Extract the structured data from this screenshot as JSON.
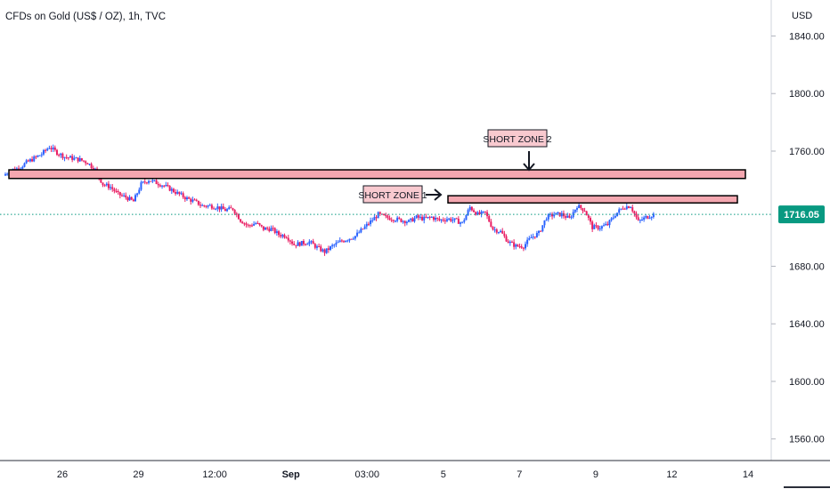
{
  "header": {
    "title": "CFDs on Gold (US$ / OZ), 1h, TVC"
  },
  "price_axis": {
    "currency": "USD"
  },
  "last_price": {
    "label": "1716.05",
    "value": 1716.05
  },
  "colors": {
    "up": "#2962ff",
    "down": "#e91e63",
    "zone_fill": "#f4a7b0",
    "zone_border": "#000000",
    "price_tag": "#089981",
    "grid": "#f0f3fa"
  },
  "annotations": [
    {
      "id": "short-zone-1",
      "label": "SHORT ZONE 1",
      "arrow": "right-arrow-icon"
    },
    {
      "id": "short-zone-2",
      "label": "SHORT ZONE 2",
      "arrow": "down-arrow-icon"
    }
  ],
  "chart_data": {
    "type": "candlestick",
    "title": "CFDs on Gold (US$ / OZ), 1h, TVC",
    "ylim": [
      1545,
      1865
    ],
    "y_ticks": [
      "1840.00",
      "1800.00",
      "1760.00",
      "1680.00",
      "1640.00",
      "1600.00",
      "1560.00"
    ],
    "x_ticks": [
      {
        "label": "26",
        "bold": false
      },
      {
        "label": "29",
        "bold": false
      },
      {
        "label": "12:00",
        "bold": false
      },
      {
        "label": "Sep",
        "bold": true
      },
      {
        "label": "03:00",
        "bold": false
      },
      {
        "label": "5",
        "bold": false
      },
      {
        "label": "7",
        "bold": false
      },
      {
        "label": "9",
        "bold": false
      },
      {
        "label": "12",
        "bold": false
      },
      {
        "label": "14",
        "bold": false
      }
    ],
    "zones": [
      {
        "name": "SHORT ZONE 2",
        "low": 1741,
        "high": 1747
      },
      {
        "name": "SHORT ZONE 1",
        "low": 1724,
        "high": 1729
      }
    ],
    "last_price": 1716.05,
    "path": [
      1743,
      1747,
      1748,
      1752,
      1755,
      1758,
      1763,
      1759,
      1756,
      1755,
      1754,
      1752,
      1747,
      1737,
      1735,
      1730,
      1728,
      1725,
      1737,
      1740,
      1738,
      1736,
      1733,
      1730,
      1727,
      1725,
      1722,
      1722,
      1721,
      1719,
      1720,
      1712,
      1708,
      1710,
      1706,
      1706,
      1702,
      1701,
      1695,
      1696,
      1697,
      1693,
      1690,
      1694,
      1697,
      1699,
      1701,
      1706,
      1711,
      1716,
      1714,
      1713,
      1712,
      1711,
      1714,
      1713,
      1714,
      1712,
      1713,
      1712,
      1710,
      1721,
      1716,
      1717,
      1706,
      1704,
      1697,
      1694,
      1694,
      1700,
      1703,
      1714,
      1716,
      1716,
      1713,
      1722,
      1719,
      1707,
      1707,
      1709,
      1716,
      1721,
      1722,
      1711,
      1714,
      1716
    ]
  }
}
